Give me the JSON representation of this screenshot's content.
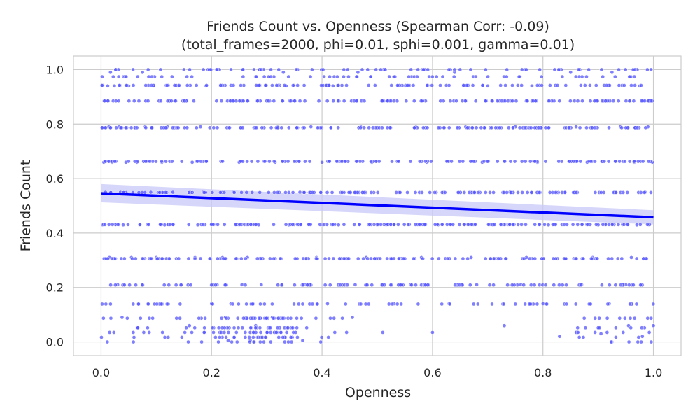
{
  "chart_data": {
    "type": "scatter",
    "title": "Friends Count vs. Openness (Spearman Corr: -0.09)",
    "subtitle": "(total_frames=2000, phi=0.01, sphi=0.001, gamma=0.01)",
    "xlabel": "Openness",
    "ylabel": "Friends Count",
    "xlim": [
      -0.05,
      1.05
    ],
    "ylim": [
      -0.05,
      1.05
    ],
    "xticks": [
      0.0,
      0.2,
      0.4,
      0.6,
      0.8,
      1.0
    ],
    "yticks": [
      0.0,
      0.2,
      0.4,
      0.6,
      0.8,
      1.0
    ],
    "xtick_labels": [
      "0.0",
      "0.2",
      "0.4",
      "0.6",
      "0.8",
      "1.0"
    ],
    "ytick_labels": [
      "0.0",
      "0.2",
      "0.4",
      "0.6",
      "0.8",
      "1.0"
    ],
    "grid": true,
    "point_color": "#5555ff",
    "line_color": "#0000ff",
    "band_color": "#c8c8f8",
    "regression": {
      "x": [
        0.0,
        1.0
      ],
      "y": [
        0.546,
        0.458
      ],
      "ci_low": [
        0.513,
        0.432
      ],
      "ci_high": [
        0.58,
        0.484
      ]
    },
    "band_levels": [
      0.0,
      0.017,
      0.035,
      0.052,
      0.087,
      0.139,
      0.209,
      0.306,
      0.431,
      0.549,
      0.663,
      0.787,
      0.885,
      0.942,
      0.974,
      1.0
    ],
    "points": [
      [
        0.003,
        0.43
      ],
      [
        0.005,
        0.66
      ],
      [
        0.008,
        0.55
      ],
      [
        0.012,
        0.94
      ],
      [
        0.014,
        0.79
      ],
      [
        0.015,
        0.31
      ],
      [
        0.017,
        0.99
      ],
      [
        0.02,
        0.66
      ],
      [
        0.022,
        0.885
      ],
      [
        0.024,
        0.94
      ],
      [
        0.027,
        1.0
      ],
      [
        0.03,
        0.21
      ],
      [
        0.033,
        0.79
      ],
      [
        0.035,
        0.55
      ],
      [
        0.038,
        0.09
      ],
      [
        0.04,
        0.43
      ],
      [
        0.045,
        0.66
      ],
      [
        0.05,
        0.94
      ],
      [
        0.055,
        0.31
      ],
      [
        0.06,
        0.885
      ],
      [
        0.065,
        0.66
      ],
      [
        0.07,
        0.43
      ],
      [
        0.075,
        0.99
      ],
      [
        0.08,
        0.79
      ],
      [
        0.085,
        0.14
      ],
      [
        0.09,
        0.55
      ],
      [
        0.095,
        0.94
      ],
      [
        0.1,
        0.31
      ],
      [
        0.105,
        0.885
      ],
      [
        0.11,
        0.66
      ],
      [
        0.115,
        0.43
      ],
      [
        0.12,
        0.79
      ],
      [
        0.13,
        0.55
      ],
      [
        0.14,
        0.94
      ],
      [
        0.145,
        0.21
      ],
      [
        0.15,
        1.0
      ],
      [
        0.155,
        0.885
      ],
      [
        0.16,
        0.06
      ],
      [
        0.165,
        0.66
      ],
      [
        0.17,
        0.31
      ],
      [
        0.175,
        0.43
      ],
      [
        0.18,
        0.79
      ],
      [
        0.185,
        0.55
      ],
      [
        0.19,
        0.94
      ],
      [
        0.2,
        0.14
      ],
      [
        0.21,
        0.21
      ],
      [
        0.215,
        0.035
      ],
      [
        0.22,
        0.31
      ],
      [
        0.225,
        0.09
      ],
      [
        0.23,
        0.005
      ],
      [
        0.235,
        0.14
      ],
      [
        0.24,
        0.55
      ],
      [
        0.245,
        0.035
      ],
      [
        0.25,
        0.66
      ],
      [
        0.255,
        0.21
      ],
      [
        0.26,
        0.09
      ],
      [
        0.265,
        0.31
      ],
      [
        0.27,
        0.005
      ],
      [
        0.275,
        0.14
      ],
      [
        0.28,
        0.06
      ],
      [
        0.285,
        0.43
      ],
      [
        0.29,
        0.21
      ],
      [
        0.3,
        0.035
      ],
      [
        0.31,
        0.09
      ],
      [
        0.315,
        0.66
      ],
      [
        0.32,
        0.79
      ],
      [
        0.33,
        0.99
      ],
      [
        0.335,
        0.94
      ],
      [
        0.34,
        0.43
      ],
      [
        0.35,
        0.885
      ],
      [
        0.36,
        0.55
      ],
      [
        0.365,
        0.005
      ],
      [
        0.37,
        0.21
      ],
      [
        0.38,
        0.79
      ],
      [
        0.39,
        0.31
      ],
      [
        0.4,
        0.66
      ],
      [
        0.41,
        0.14
      ],
      [
        0.42,
        0.94
      ],
      [
        0.43,
        0.43
      ],
      [
        0.44,
        0.885
      ],
      [
        0.45,
        0.55
      ],
      [
        0.455,
        0.09
      ],
      [
        0.46,
        0.21
      ],
      [
        0.465,
        0.99
      ],
      [
        0.47,
        0.79
      ],
      [
        0.48,
        0.31
      ],
      [
        0.49,
        0.66
      ],
      [
        0.5,
        0.43
      ],
      [
        0.51,
        0.035
      ],
      [
        0.52,
        0.885
      ],
      [
        0.53,
        0.14
      ],
      [
        0.54,
        0.55
      ],
      [
        0.55,
        0.94
      ],
      [
        0.56,
        0.21
      ],
      [
        0.57,
        0.79
      ],
      [
        0.58,
        0.31
      ],
      [
        0.59,
        0.66
      ],
      [
        0.6,
        0.035
      ],
      [
        0.61,
        0.43
      ],
      [
        0.62,
        0.885
      ],
      [
        0.63,
        0.14
      ],
      [
        0.64,
        0.99
      ],
      [
        0.65,
        0.55
      ],
      [
        0.66,
        0.79
      ],
      [
        0.67,
        0.31
      ],
      [
        0.68,
        0.21
      ],
      [
        0.69,
        0.66
      ],
      [
        0.7,
        0.94
      ],
      [
        0.71,
        0.43
      ],
      [
        0.72,
        0.885
      ],
      [
        0.73,
        0.06
      ],
      [
        0.74,
        0.55
      ],
      [
        0.75,
        0.79
      ],
      [
        0.76,
        0.21
      ],
      [
        0.77,
        0.31
      ],
      [
        0.78,
        0.94
      ],
      [
        0.79,
        0.66
      ],
      [
        0.8,
        0.14
      ],
      [
        0.81,
        0.43
      ],
      [
        0.82,
        0.885
      ],
      [
        0.83,
        0.02
      ],
      [
        0.84,
        0.55
      ],
      [
        0.85,
        0.99
      ],
      [
        0.86,
        0.79
      ],
      [
        0.87,
        0.21
      ],
      [
        0.88,
        0.66
      ],
      [
        0.89,
        0.31
      ],
      [
        0.9,
        0.43
      ],
      [
        0.905,
        0.03
      ],
      [
        0.91,
        0.885
      ],
      [
        0.92,
        0.14
      ],
      [
        0.925,
        0.99
      ],
      [
        0.93,
        0.55
      ],
      [
        0.94,
        0.79
      ],
      [
        0.95,
        0.21
      ],
      [
        0.955,
        0.06
      ],
      [
        0.96,
        0.31
      ],
      [
        0.965,
        0.66
      ],
      [
        0.97,
        0.43
      ],
      [
        0.975,
        0.94
      ],
      [
        0.98,
        0.02
      ],
      [
        0.985,
        0.55
      ],
      [
        0.99,
        0.79
      ],
      [
        0.995,
        0.885
      ],
      [
        1.0,
        0.06
      ],
      [
        0.998,
        0.66
      ],
      [
        0.996,
        0.0
      ],
      [
        0.992,
        0.43
      ]
    ]
  }
}
